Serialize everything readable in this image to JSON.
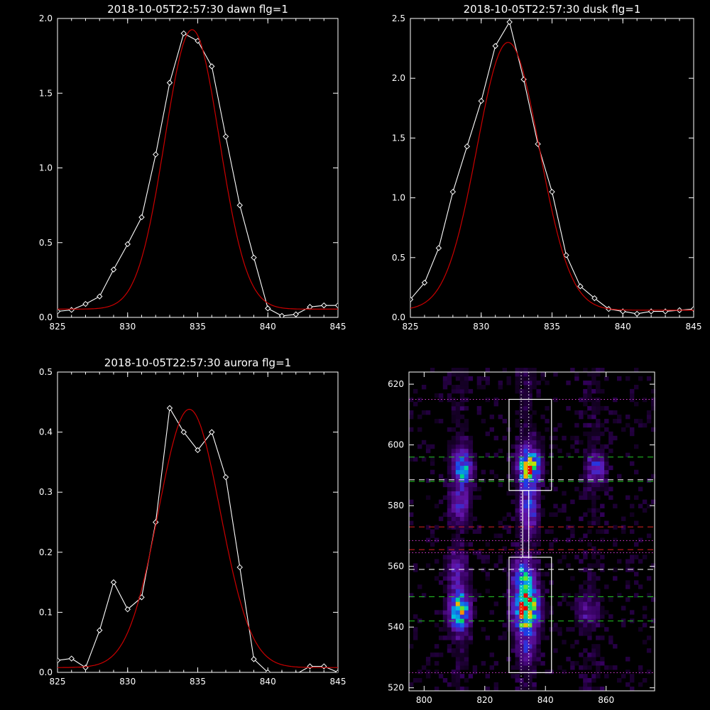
{
  "colors": {
    "background": "#000000",
    "axes": "#ffffff",
    "observed": "#ffffff",
    "fit": "#cc0000"
  },
  "chart_data": [
    {
      "id": "dawn",
      "type": "line",
      "title": "2018-10-05T22:57:30 dawn flg=1",
      "xlim": [
        825,
        845
      ],
      "ylim": [
        0,
        2.0
      ],
      "xticks": [
        825,
        830,
        835,
        840,
        845
      ],
      "yticks": [
        "0.0",
        "0.5",
        "1.0",
        "1.5",
        "2.0"
      ],
      "series": [
        {
          "style": "observed",
          "x": [
            825,
            826,
            827,
            828,
            829,
            830,
            831,
            832,
            833,
            834,
            835,
            836,
            837,
            838,
            839,
            840,
            841,
            842,
            843,
            844,
            845
          ],
          "y": [
            0.04,
            0.05,
            0.09,
            0.14,
            0.32,
            0.49,
            0.67,
            1.09,
            1.57,
            1.9,
            1.85,
            1.68,
            1.21,
            0.75,
            0.4,
            0.06,
            0.01,
            0.02,
            0.07,
            0.08,
            0.08
          ]
        },
        {
          "style": "fit",
          "gaussian": {
            "amp": 1.87,
            "center": 834.6,
            "sigma": 1.95,
            "base": 0.055
          }
        }
      ]
    },
    {
      "id": "dusk",
      "type": "line",
      "title": "2018-10-05T22:57:30 dusk flg=1",
      "xlim": [
        825,
        845
      ],
      "ylim": [
        0,
        2.5
      ],
      "xticks": [
        825,
        830,
        835,
        840,
        845
      ],
      "yticks": [
        "0.0",
        "0.5",
        "1.0",
        "1.5",
        "2.0",
        "2.5"
      ],
      "series": [
        {
          "style": "observed",
          "x": [
            825,
            826,
            827,
            828,
            829,
            830,
            831,
            832,
            833,
            834,
            835,
            836,
            837,
            838,
            839,
            840,
            841,
            842,
            843,
            844,
            845
          ],
          "y": [
            0.15,
            0.29,
            0.58,
            1.05,
            1.43,
            1.81,
            2.27,
            2.47,
            1.99,
            1.45,
            1.05,
            0.52,
            0.26,
            0.16,
            0.07,
            0.05,
            0.03,
            0.05,
            0.05,
            0.06,
            0.07
          ]
        },
        {
          "style": "fit",
          "gaussian": {
            "amp": 2.24,
            "center": 831.9,
            "sigma": 2.2,
            "base": 0.06
          }
        }
      ]
    },
    {
      "id": "aurora",
      "type": "line",
      "title": "2018-10-05T22:57:30 aurora flg=1",
      "xlim": [
        825,
        845
      ],
      "ylim": [
        0,
        0.5
      ],
      "xticks": [
        825,
        830,
        835,
        840,
        845
      ],
      "yticks": [
        "0.0",
        "0.1",
        "0.2",
        "0.3",
        "0.4",
        "0.5"
      ],
      "series": [
        {
          "style": "observed",
          "x": [
            825,
            826,
            827,
            828,
            829,
            830,
            831,
            832,
            833,
            834,
            835,
            836,
            837,
            838,
            839,
            840,
            841,
            842,
            843,
            844,
            845
          ],
          "y": [
            0.02,
            0.023,
            0.008,
            0.07,
            0.15,
            0.105,
            0.125,
            0.25,
            0.44,
            0.4,
            0.37,
            0.4,
            0.325,
            0.175,
            0.022,
            0.0,
            -0.003,
            -0.003,
            0.01,
            0.01,
            0.0
          ]
        },
        {
          "style": "fit",
          "gaussian": {
            "amp": 0.43,
            "center": 834.4,
            "sigma": 2.2,
            "base": 0.008
          }
        }
      ]
    },
    {
      "id": "image",
      "type": "heatmap",
      "title": "",
      "xlim": [
        795,
        876
      ],
      "ylim": [
        519,
        624
      ],
      "xticks": [
        800,
        820,
        840,
        860
      ],
      "yticks": [
        520,
        540,
        560,
        580,
        600,
        620
      ],
      "blobs": [
        {
          "x": 811,
          "y": 545,
          "sx": 2.2,
          "sy": 4.5,
          "amp": 0.68
        },
        {
          "x": 810,
          "y": 558,
          "sx": 2.0,
          "sy": 4.0,
          "amp": 0.22
        },
        {
          "x": 812,
          "y": 592,
          "sx": 2.0,
          "sy": 4.0,
          "amp": 0.55
        },
        {
          "x": 811,
          "y": 580,
          "sx": 2.0,
          "sy": 4.0,
          "amp": 0.28
        },
        {
          "x": 833,
          "y": 545,
          "sx": 2.6,
          "sy": 5.0,
          "amp": 1.0
        },
        {
          "x": 832,
          "y": 556,
          "sx": 2.5,
          "sy": 4.0,
          "amp": 0.45
        },
        {
          "x": 834,
          "y": 592,
          "sx": 2.3,
          "sy": 4.0,
          "amp": 0.85
        },
        {
          "x": 834,
          "y": 578,
          "sx": 2.0,
          "sy": 5.0,
          "amp": 0.35
        },
        {
          "x": 833,
          "y": 532,
          "sx": 2.0,
          "sy": 3.0,
          "amp": 0.22
        },
        {
          "x": 856,
          "y": 592,
          "sx": 2.0,
          "sy": 3.0,
          "amp": 0.35
        },
        {
          "x": 853,
          "y": 545,
          "sx": 2.5,
          "sy": 3.5,
          "amp": 0.18
        }
      ],
      "boxes": [
        {
          "x": [
            828,
            842
          ],
          "y": [
            525,
            563
          ]
        },
        {
          "x": [
            828,
            842
          ],
          "y": [
            585,
            615
          ]
        }
      ],
      "connector_x": [
        832.5,
        834.5
      ],
      "vlines_dotted": [
        832,
        834.5
      ],
      "hlines": [
        {
          "y": 615,
          "color": "magenta",
          "style": "dotted"
        },
        {
          "y": 596,
          "color": "green",
          "style": "dashed"
        },
        {
          "y": 588.5,
          "color": "white",
          "style": "dashed"
        },
        {
          "y": 588,
          "color": "green",
          "style": "dashed"
        },
        {
          "y": 573,
          "color": "red",
          "style": "dashed"
        },
        {
          "y": 568.5,
          "color": "magenta",
          "style": "dotted"
        },
        {
          "y": 565.5,
          "color": "red",
          "style": "dashed"
        },
        {
          "y": 564.5,
          "color": "magenta",
          "style": "dotted"
        },
        {
          "y": 559,
          "color": "white",
          "style": "dashed"
        },
        {
          "y": 550,
          "color": "green",
          "style": "dashed"
        },
        {
          "y": 542,
          "color": "green",
          "style": "dashed"
        },
        {
          "y": 525,
          "color": "magenta",
          "style": "dotted"
        }
      ]
    }
  ]
}
